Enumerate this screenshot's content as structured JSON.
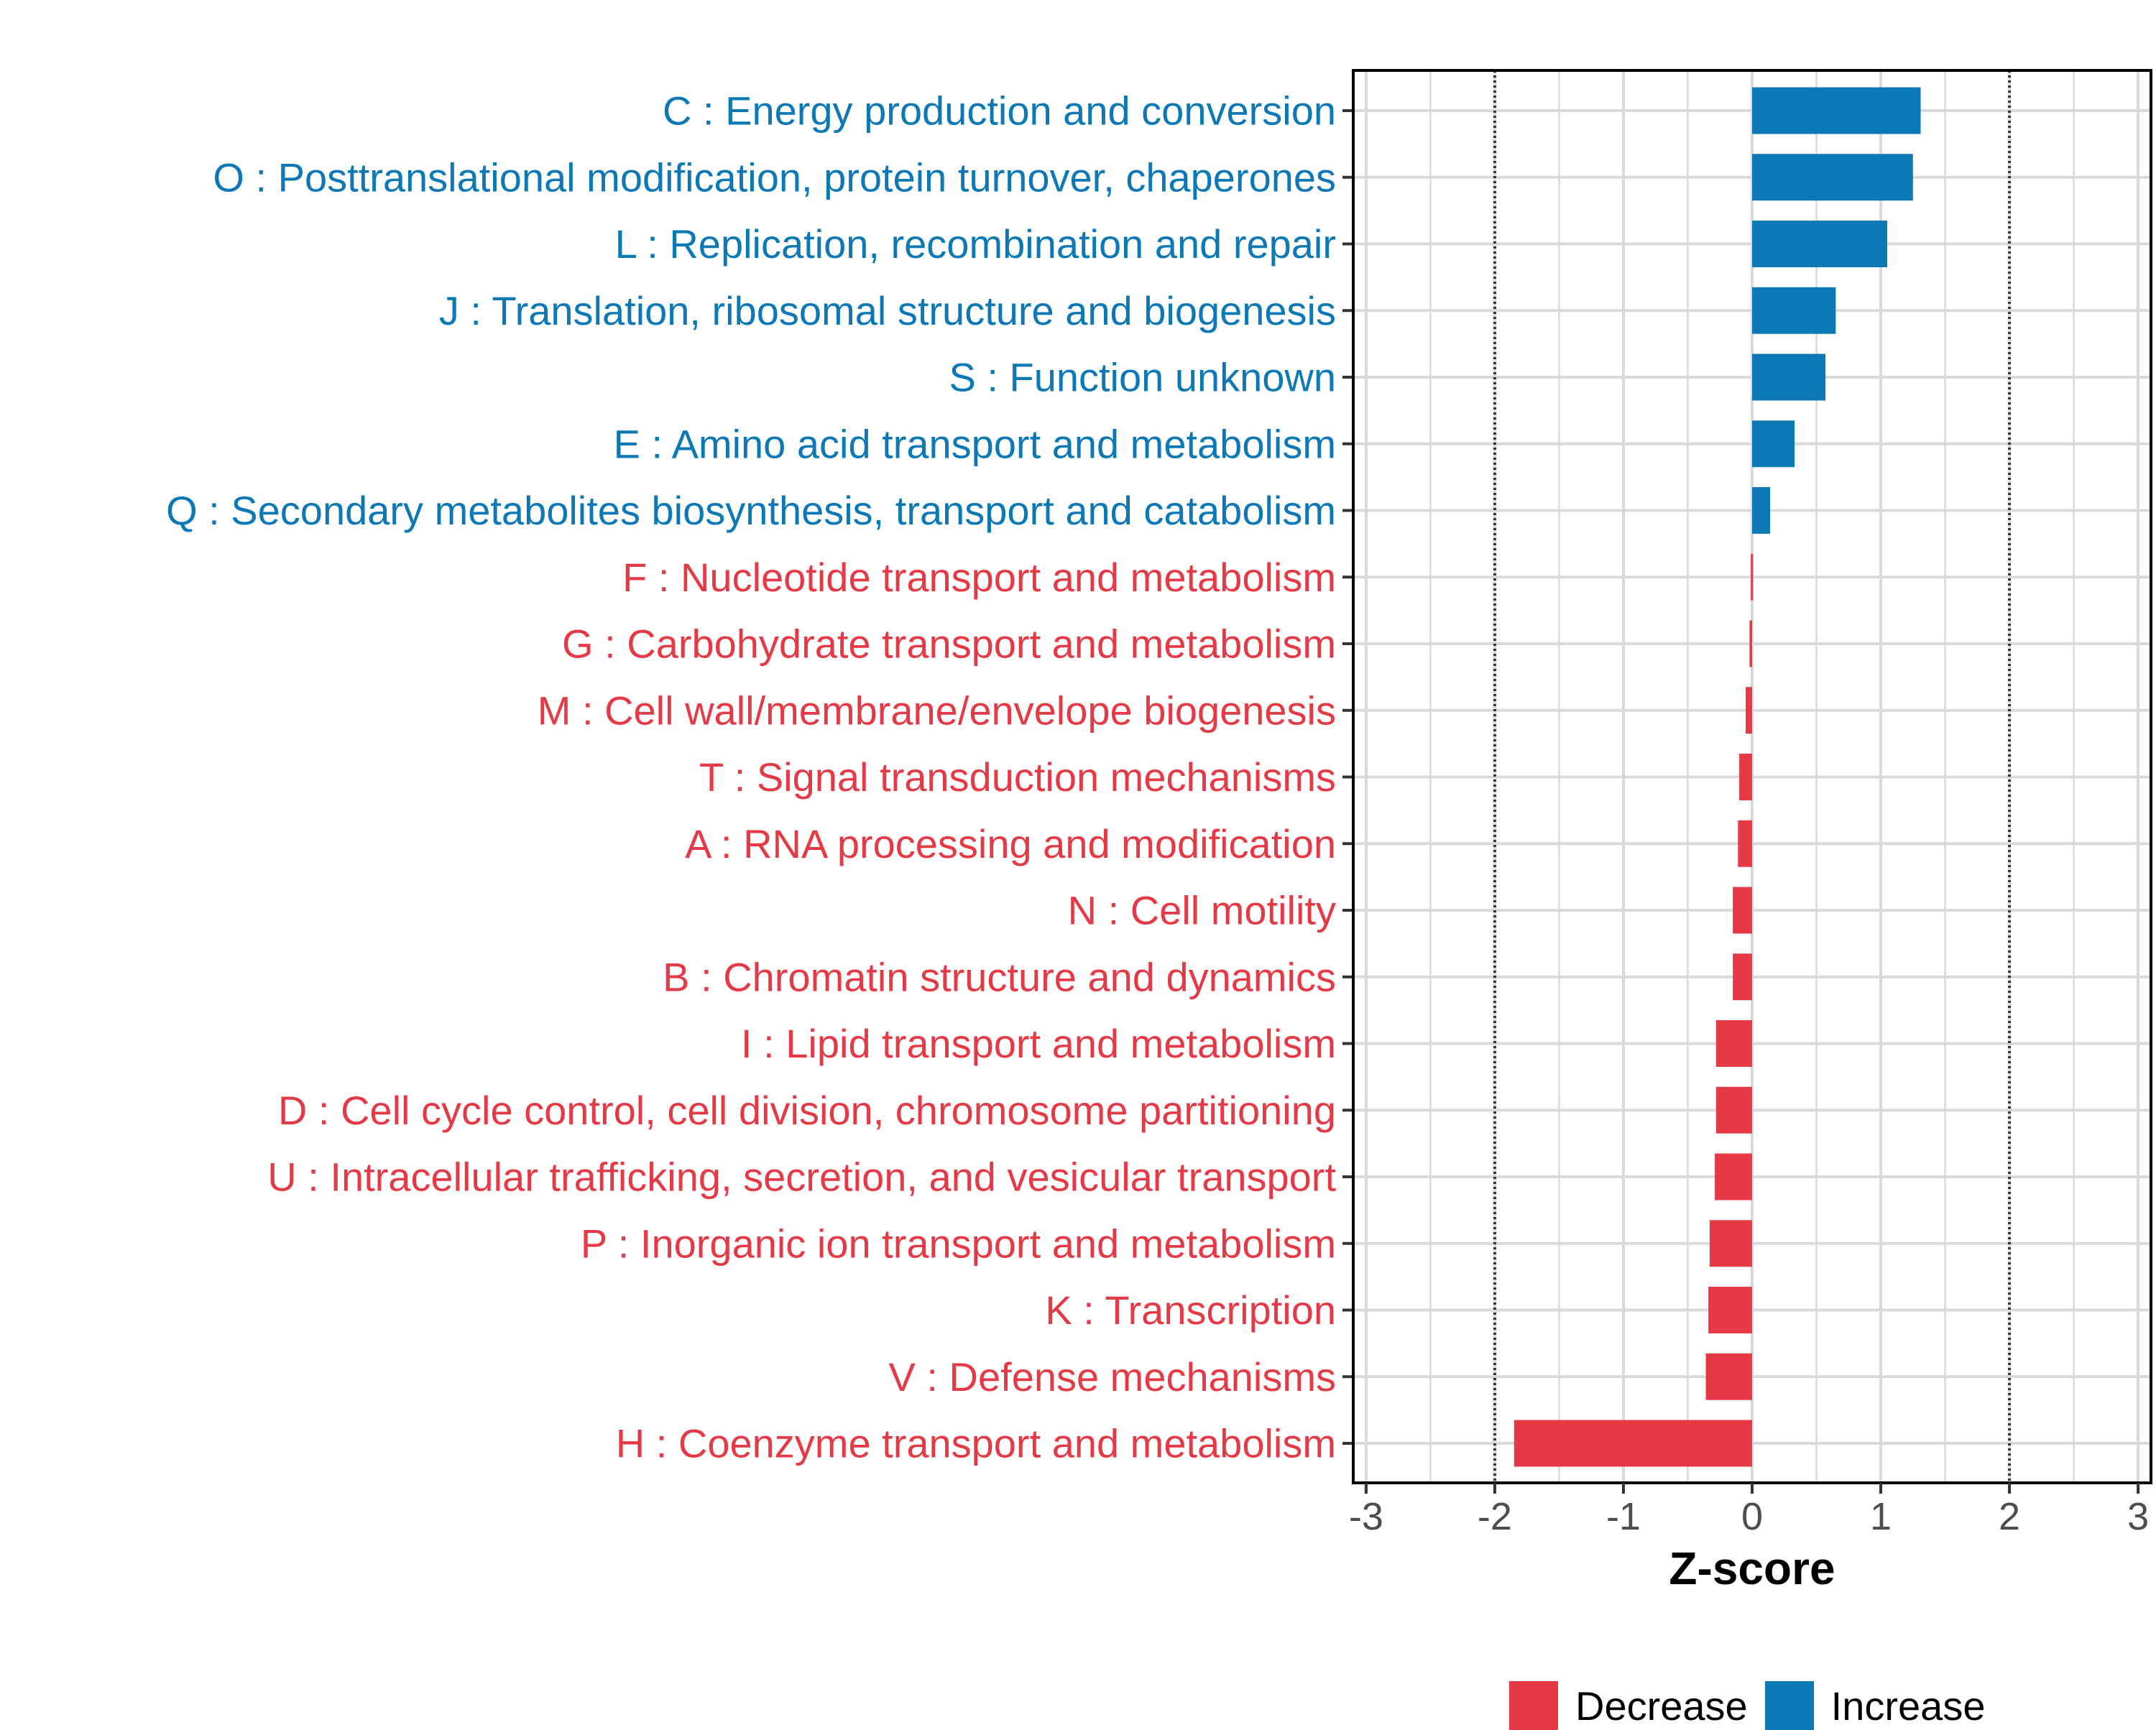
{
  "chart_data": {
    "type": "bar",
    "orientation": "horizontal",
    "xlabel": "Z-score",
    "xlim": [
      -3.1,
      3.1
    ],
    "xticks": [
      -3,
      -2,
      -1,
      0,
      1,
      2,
      3
    ],
    "reference_lines": [
      -2,
      2
    ],
    "grid": true,
    "legend_position": "bottom",
    "colors": {
      "increase": "#0C78B5",
      "decrease": "#E63946",
      "axis_text": "#4D4D4D",
      "grid": "#D9D9D9"
    },
    "categories": [
      "C : Energy production and conversion",
      "O : Posttranslational modification, protein turnover, chaperones",
      "L : Replication, recombination and repair",
      "J : Translation, ribosomal structure and biogenesis",
      "S : Function unknown",
      "E : Amino acid transport and metabolism",
      "Q : Secondary metabolites biosynthesis, transport and catabolism",
      "F : Nucleotide transport and metabolism",
      "G : Carbohydrate transport and metabolism",
      "M : Cell wall/membrane/envelope biogenesis",
      "T : Signal transduction mechanisms",
      "A : RNA processing and modification",
      "N : Cell motility",
      "B : Chromatin structure and dynamics",
      "I : Lipid transport and metabolism",
      "D : Cell cycle control, cell division, chromosome partitioning",
      "U : Intracellular trafficking, secretion, and vesicular transport",
      "P : Inorganic ion transport and metabolism",
      "K : Transcription",
      "V : Defense mechanisms",
      "H : Coenzyme transport and metabolism"
    ],
    "values": [
      1.31,
      1.25,
      1.05,
      0.65,
      0.57,
      0.33,
      0.14,
      -0.01,
      -0.02,
      -0.05,
      -0.1,
      -0.11,
      -0.15,
      -0.15,
      -0.28,
      -0.28,
      -0.29,
      -0.33,
      -0.34,
      -0.36,
      -1.85
    ],
    "groups": [
      "Increase",
      "Increase",
      "Increase",
      "Increase",
      "Increase",
      "Increase",
      "Increase",
      "Decrease",
      "Decrease",
      "Decrease",
      "Decrease",
      "Decrease",
      "Decrease",
      "Decrease",
      "Decrease",
      "Decrease",
      "Decrease",
      "Decrease",
      "Decrease",
      "Decrease",
      "Decrease"
    ],
    "legend": [
      {
        "key": "decrease",
        "label": "Decrease"
      },
      {
        "key": "increase",
        "label": "Increase"
      }
    ]
  }
}
